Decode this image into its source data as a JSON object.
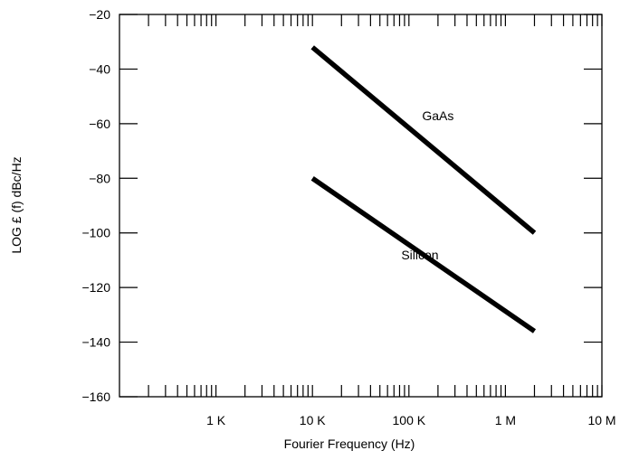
{
  "chart_data": {
    "type": "line",
    "title": "",
    "xlabel": "Fourier Frequency (Hz)",
    "ylabel": "LOG £ (f) dBc/Hz",
    "x_scale": "log",
    "xlim": [
      100,
      10000000
    ],
    "ylim": [
      -160,
      -20
    ],
    "grid": false,
    "legend": "none",
    "x_ticks": [
      {
        "value": 1000,
        "label": "1 K"
      },
      {
        "value": 10000,
        "label": "10 K"
      },
      {
        "value": 100000,
        "label": "100 K"
      },
      {
        "value": 1000000,
        "label": "1 M"
      },
      {
        "value": 10000000,
        "label": "10 M"
      }
    ],
    "y_ticks": [
      {
        "value": -20,
        "label": "−20"
      },
      {
        "value": -40,
        "label": "−40"
      },
      {
        "value": -60,
        "label": "−60"
      },
      {
        "value": -80,
        "label": "−80"
      },
      {
        "value": -100,
        "label": "−100"
      },
      {
        "value": -120,
        "label": "−120"
      },
      {
        "value": -140,
        "label": "−140"
      },
      {
        "value": -160,
        "label": "−160"
      }
    ],
    "series": [
      {
        "name": "GaAs",
        "x": [
          10000,
          2000000
        ],
        "y": [
          -32,
          -100
        ],
        "label_at": [
          200000,
          -57
        ]
      },
      {
        "name": "Silicon",
        "x": [
          10000,
          2000000
        ],
        "y": [
          -80,
          -136
        ],
        "label_at": [
          130000,
          -108
        ]
      }
    ],
    "colors": {
      "line": "#000000",
      "axis": "#000000",
      "background": "#ffffff"
    }
  }
}
